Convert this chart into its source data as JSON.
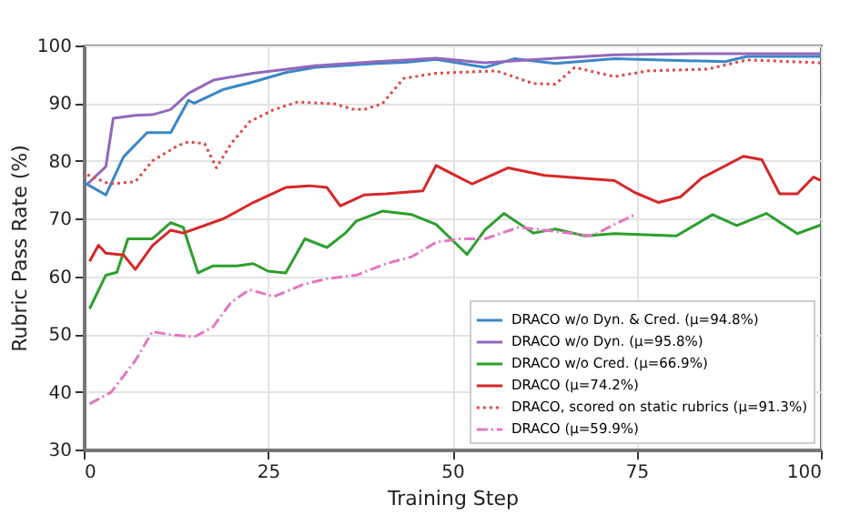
{
  "chart_data": {
    "type": "line",
    "xlabel": "Training Step",
    "ylabel": "Rubric Pass Rate (%)",
    "xlim": [
      0,
      100
    ],
    "xticks": [
      0,
      25,
      50,
      75,
      100
    ],
    "ylim": [
      30,
      100
    ],
    "yticks": [
      30,
      40,
      50,
      60,
      70,
      80,
      90,
      100
    ],
    "grid": true,
    "legend": "bottom right",
    "series": [
      {
        "name": "DRACO w/o Dyn. & Cred. (μ=94.8%)",
        "color": "#3a87c8",
        "line_style": "solid",
        "x": [
          0,
          3,
          5.4,
          8.6,
          11.8,
          14.2,
          15,
          19,
          23,
          27.4,
          31.4,
          39.7,
          43.6,
          47.8,
          54.4,
          58.4,
          64,
          72,
          87,
          90,
          100
        ],
        "values": [
          76.3,
          74.1,
          80.7,
          84.9,
          84.9,
          90.5,
          90,
          92.4,
          93.7,
          95.3,
          96.2,
          96.9,
          97.1,
          97.6,
          96.2,
          97.7,
          96.9,
          97.7,
          97.2,
          98.1,
          98.1
        ]
      },
      {
        "name": "DRACO w/o Dyn. (μ=95.8%)",
        "color": "#9467bd",
        "line_style": "solid",
        "x": [
          0.5,
          3,
          4,
          7,
          9.3,
          11.8,
          14.2,
          17.6,
          23,
          31.4,
          39.7,
          47.8,
          54.4,
          64,
          72,
          84,
          100
        ],
        "values": [
          76,
          79,
          87.4,
          87.9,
          88,
          88.9,
          91.7,
          94,
          95.2,
          96.5,
          97.2,
          97.8,
          97,
          97.8,
          98.4,
          98.6,
          98.6
        ]
      },
      {
        "name": "DRACO w/o Cred. (μ=66.9%)",
        "color": "#2ca02c",
        "line_style": "solid",
        "x": [
          0.8,
          3,
          4.5,
          6,
          9.3,
          11.8,
          13.5,
          14,
          15.5,
          17.5,
          20.8,
          23,
          25,
          27.4,
          30,
          33,
          35.5,
          37,
          40.5,
          44.5,
          47.8,
          52,
          54.4,
          57,
          61,
          64,
          68,
          72,
          80.4,
          85.3,
          88.6,
          92.6,
          96.8,
          100
        ],
        "values": [
          54.4,
          60.2,
          60.7,
          66.5,
          66.5,
          69.3,
          68.5,
          66.5,
          60.6,
          61.8,
          61.8,
          62.2,
          60.9,
          60.6,
          66.5,
          65,
          67.5,
          69.6,
          71.3,
          70.7,
          69,
          63.8,
          68,
          70.9,
          67.5,
          68.2,
          67,
          67.4,
          67,
          70.7,
          68.8,
          70.9,
          67.4,
          68.9
        ]
      },
      {
        "name": "DRACO (μ=74.2%)",
        "color": "#d62728",
        "line_style": "solid",
        "x": [
          0.8,
          2,
          3,
          5.4,
          7,
          9.3,
          11.8,
          13.5,
          19,
          23,
          27.4,
          30.6,
          33,
          34.8,
          38,
          41,
          46,
          47.8,
          52.7,
          57.6,
          62.5,
          72,
          74.8,
          78,
          81,
          83.8,
          89.5,
          92,
          94.4,
          96.8,
          99,
          100
        ],
        "values": [
          62.6,
          65.4,
          64,
          63.7,
          61.2,
          65.3,
          68,
          67.5,
          70,
          72.8,
          75.4,
          75.7,
          75.4,
          72.2,
          74.1,
          74.3,
          74.8,
          79.2,
          76,
          78.8,
          77.5,
          76.6,
          74.5,
          72.8,
          73.8,
          77,
          80.8,
          80.2,
          74.3,
          74.3,
          77.2,
          76.6
        ]
      },
      {
        "name": "DRACO, scored on static rubrics (μ=91.3%)",
        "color": "#e04848",
        "line_style": "dotted",
        "x": [
          0.5,
          3.5,
          7,
          9.3,
          12.7,
          14.2,
          16.4,
          18,
          20,
          22.5,
          25.8,
          29,
          34,
          36.4,
          38,
          40.5,
          43.4,
          47.8,
          56,
          61,
          64,
          66.6,
          72,
          76.5,
          84.6,
          90,
          100
        ],
        "values": [
          77.6,
          76,
          76.4,
          80,
          82.6,
          83.3,
          83,
          78.8,
          83,
          86.8,
          88.9,
          90.2,
          89.9,
          89,
          88.9,
          89.9,
          94.3,
          95.2,
          95.6,
          93.4,
          93.3,
          96.2,
          94.6,
          95.6,
          95.9,
          97.5,
          97
        ]
      },
      {
        "name": "DRACO (μ=59.9%)",
        "color": "#e377c2",
        "line_style": "dashed",
        "x": [
          0.8,
          3.7,
          7,
          9.3,
          11.8,
          15,
          17.5,
          20,
          22.5,
          25.8,
          29.8,
          33,
          37,
          41,
          44.5,
          47.8,
          51,
          54.4,
          59,
          64,
          69,
          72,
          74.8
        ],
        "values": [
          37.9,
          39.9,
          45.4,
          50.4,
          49.9,
          49.5,
          51.2,
          55.5,
          57.7,
          56.5,
          58.6,
          59.6,
          60.2,
          62.2,
          63.4,
          65.9,
          66.5,
          66.5,
          68.5,
          67.8,
          67,
          69,
          70.7
        ]
      }
    ]
  }
}
